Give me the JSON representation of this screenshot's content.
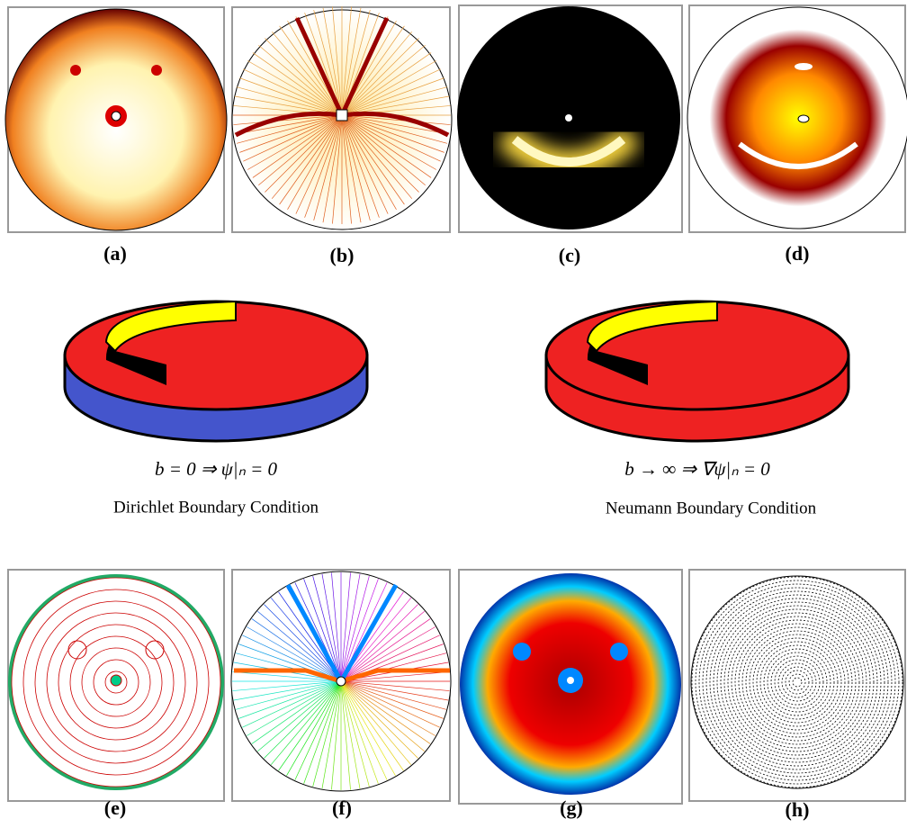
{
  "panels": [
    {
      "label": "(a)"
    },
    {
      "label": "(b)"
    },
    {
      "label": "(c)"
    },
    {
      "label": "(d)"
    },
    {
      "label": "(e)"
    },
    {
      "label": "(f)"
    },
    {
      "label": "(g)"
    },
    {
      "label": "(h)"
    }
  ],
  "conditions": [
    {
      "equation": "b = 0 ⇒ ψ|ₙ = 0",
      "name": "Dirichlet Boundary Condition"
    },
    {
      "equation": "b → ∞ ⇒ ∇ψ|ₙ = 0",
      "name": "Neumann Boundary Condition"
    }
  ]
}
